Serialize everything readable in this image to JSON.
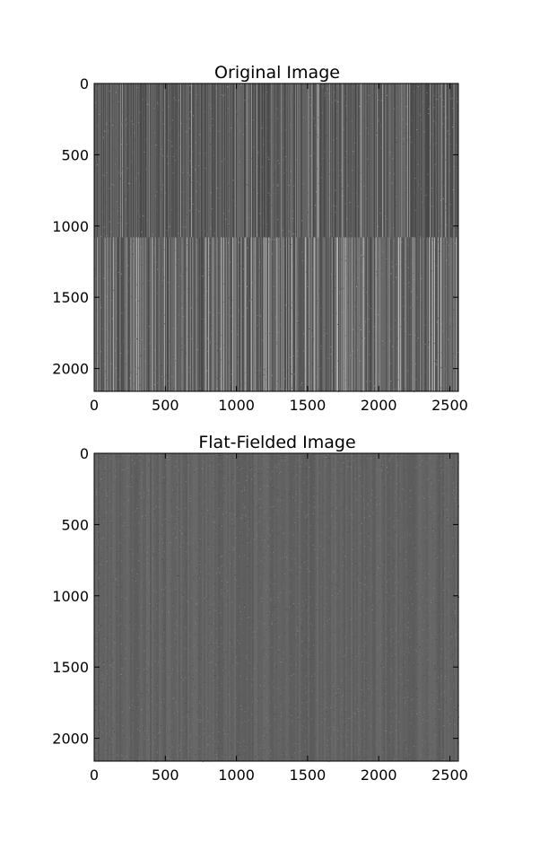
{
  "chart_data": [
    {
      "type": "heatmap",
      "title": "Original Image",
      "xlabel": "",
      "ylabel": "",
      "xlim": [
        0,
        2560
      ],
      "ylim": [
        2160,
        0
      ],
      "x_ticks": [
        "0",
        "500",
        "1000",
        "1500",
        "2000",
        "2500"
      ],
      "y_ticks": [
        "0",
        "500",
        "1000",
        "1500",
        "2000"
      ],
      "colormap": "gray",
      "grid": false,
      "notes_visible": "vertical column stripes; brighter, more contrasted lower half below row ~1080"
    },
    {
      "type": "heatmap",
      "title": "Flat-Fielded Image",
      "xlabel": "",
      "ylabel": "",
      "xlim": [
        0,
        2560
      ],
      "ylim": [
        2160,
        0
      ],
      "x_ticks": [
        "0",
        "500",
        "1000",
        "1500",
        "2000",
        "2500"
      ],
      "y_ticks": [
        "0",
        "500",
        "1000",
        "1500",
        "2000"
      ],
      "colormap": "gray",
      "grid": false,
      "notes_visible": "uniform fine gray noise with faint stripes"
    }
  ],
  "colors": {
    "background": "#ffffff",
    "axis": "#000000",
    "image_base_top": "#5a5a5a",
    "image_base_bottom": "#676767",
    "flat_base": "#626262"
  }
}
